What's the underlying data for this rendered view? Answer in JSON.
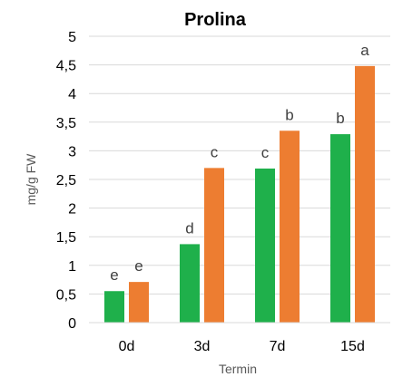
{
  "chart_data": {
    "type": "bar",
    "title": "Prolina",
    "xlabel": "Termin",
    "ylabel": "mg/g FW",
    "categories": [
      "0d",
      "3d",
      "7d",
      "15d"
    ],
    "ylim": [
      0,
      5
    ],
    "yticks": [
      "0",
      "0,5",
      "1",
      "1,5",
      "2",
      "2,5",
      "3",
      "3,5",
      "4",
      "4,5",
      "5"
    ],
    "ytick_values": [
      0,
      0.5,
      1,
      1.5,
      2,
      2.5,
      3,
      3.5,
      4,
      4.5,
      5
    ],
    "grid": true,
    "legend": "none",
    "series": [
      {
        "color": "#1fb04b",
        "values": [
          0.55,
          1.37,
          2.69,
          3.29
        ],
        "labels": [
          "e",
          "d",
          "c",
          "b"
        ]
      },
      {
        "color": "#ed7d31",
        "values": [
          0.71,
          2.7,
          3.35,
          4.48
        ],
        "labels": [
          "e",
          "c",
          "b",
          "a"
        ]
      }
    ]
  }
}
